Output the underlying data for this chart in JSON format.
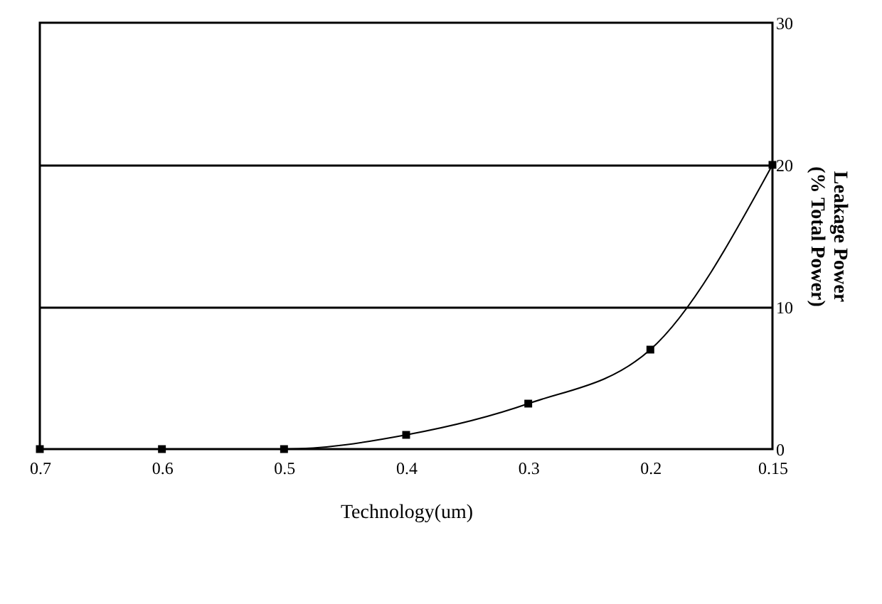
{
  "chart_data": {
    "type": "line",
    "xlabel": "Technology(um)",
    "ylabel": "Leakage Power\n(% Total Power)",
    "categories": [
      "0.7",
      "0.6",
      "0.5",
      "0.4",
      "0.3",
      "0.2",
      "0.15"
    ],
    "series": [
      {
        "color": "#000000",
        "values": [
          0,
          0,
          0,
          1,
          3.2,
          7,
          20
        ]
      }
    ],
    "ylim": [
      0,
      30
    ],
    "yticks": [
      0,
      10,
      20,
      30
    ],
    "grid": "y",
    "marker": "square",
    "line_style": "solid"
  }
}
